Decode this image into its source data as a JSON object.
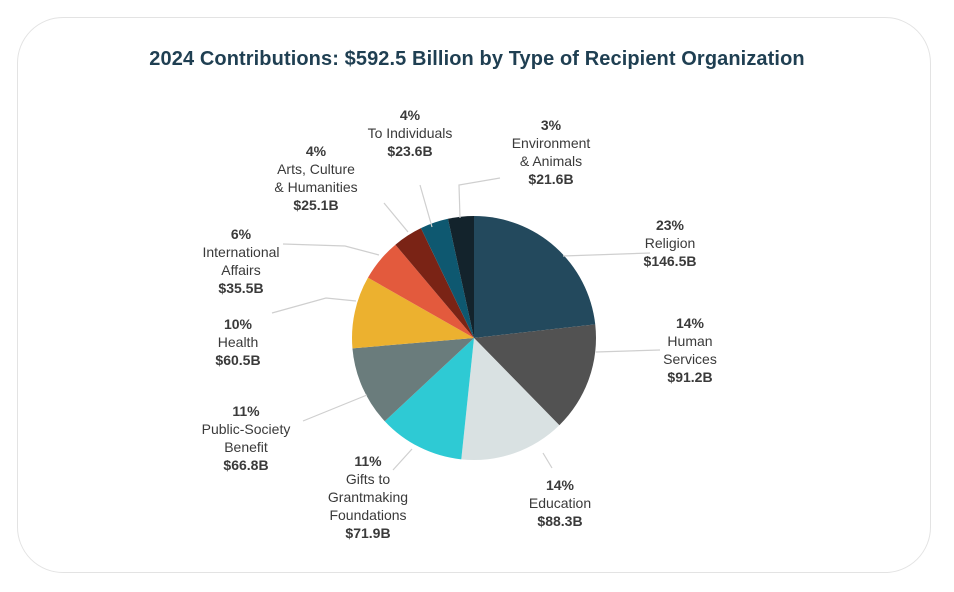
{
  "chart_data": {
    "type": "pie",
    "title": "2024 Contributions: $592.5 Billion by Type of Recipient Organization",
    "slices": [
      {
        "name": "Religion",
        "label_lines": [
          "Religion"
        ],
        "percent": "23%",
        "amount": "$146.5B",
        "value": 146.5,
        "color": "#23495d"
      },
      {
        "name": "Human Services",
        "label_lines": [
          "Human",
          "Services"
        ],
        "percent": "14%",
        "amount": "$91.2B",
        "value": 91.2,
        "color": "#525252"
      },
      {
        "name": "Education",
        "label_lines": [
          "Education"
        ],
        "percent": "14%",
        "amount": "$88.3B",
        "value": 88.3,
        "color": "#d9e1e2"
      },
      {
        "name": "Gifts to Grantmaking Foundations",
        "label_lines": [
          "Gifts to",
          "Grantmaking",
          "Foundations"
        ],
        "percent": "11%",
        "amount": "$71.9B",
        "value": 71.9,
        "color": "#2ecad4"
      },
      {
        "name": "Public-Society Benefit",
        "label_lines": [
          "Public-Society",
          "Benefit"
        ],
        "percent": "11%",
        "amount": "$66.8B",
        "value": 66.8,
        "color": "#6a7c7c"
      },
      {
        "name": "Health",
        "label_lines": [
          "Health"
        ],
        "percent": "10%",
        "amount": "$60.5B",
        "value": 60.5,
        "color": "#ecb12f"
      },
      {
        "name": "International Affairs",
        "label_lines": [
          "International",
          "Affairs"
        ],
        "percent": "6%",
        "amount": "$35.5B",
        "value": 35.5,
        "color": "#e35a3d"
      },
      {
        "name": "Arts, Culture & Humanities",
        "label_lines": [
          "Arts, Culture",
          "& Humanities"
        ],
        "percent": "4%",
        "amount": "$25.1B",
        "value": 25.1,
        "color": "#7a2315"
      },
      {
        "name": "To Individuals",
        "label_lines": [
          "To Individuals"
        ],
        "percent": "4%",
        "amount": "$23.6B",
        "value": 23.6,
        "color": "#0e5870"
      },
      {
        "name": "Environment & Animals",
        "label_lines": [
          "Environment",
          "& Animals"
        ],
        "percent": "3%",
        "amount": "$21.6B",
        "value": 21.6,
        "color": "#13232c"
      }
    ]
  }
}
